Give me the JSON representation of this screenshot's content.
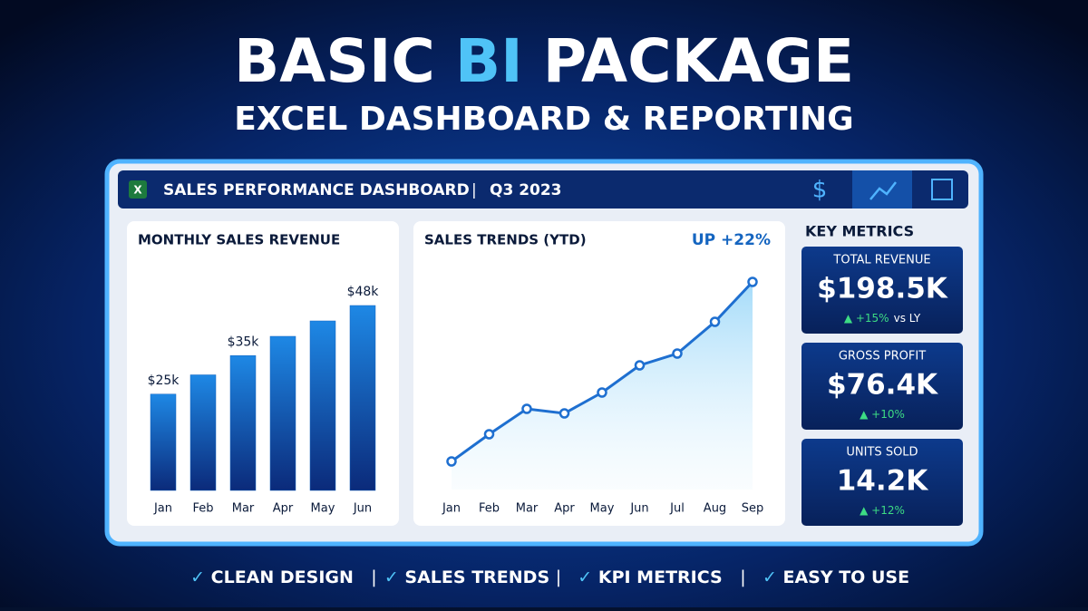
{
  "header": {
    "title_parts": [
      "BASIC",
      "BI",
      "PACKAGE"
    ],
    "subtitle": "EXCEL DASHBOARD & REPORTING"
  },
  "dashboard": {
    "title": "SALES PERFORMANCE DASHBOARD",
    "period": "Q3 2023",
    "metrics_title": "KEY METRICS",
    "metrics": [
      {
        "label": "TOTAL REVENUE",
        "value": "$198.5K",
        "change": "+15%",
        "note": "vs LY"
      },
      {
        "label": "GROSS PROFIT",
        "value": "$76.4K",
        "change": "+10%"
      },
      {
        "label": "UNITS SOLD",
        "value": "14.2K",
        "change": "+12%"
      }
    ]
  },
  "chart_data": [
    {
      "type": "bar",
      "title": "MONTHLY SALES REVENUE",
      "categories": [
        "Jan",
        "Feb",
        "Mar",
        "Apr",
        "May",
        "Jun"
      ],
      "values": [
        25,
        30,
        35,
        40,
        44,
        48
      ],
      "value_labels": [
        "$25k",
        null,
        "$35k",
        null,
        null,
        "$48k"
      ],
      "color": "#1565c0"
    },
    {
      "type": "line",
      "title": "SALES TRENDS (YTD)",
      "annotation": "UP +22%",
      "categories": [
        "Jan",
        "Feb",
        "Mar",
        "Apr",
        "May",
        "Jun",
        "Jul",
        "Aug",
        "Sep"
      ],
      "values": [
        31,
        61,
        89,
        84,
        107,
        137,
        150,
        185,
        229
      ],
      "color": "#1e6fd0"
    }
  ],
  "footer": {
    "features": [
      "CLEAN DESIGN",
      "SALES TRENDS",
      "KPI METRICS",
      "EASY TO USE"
    ]
  }
}
